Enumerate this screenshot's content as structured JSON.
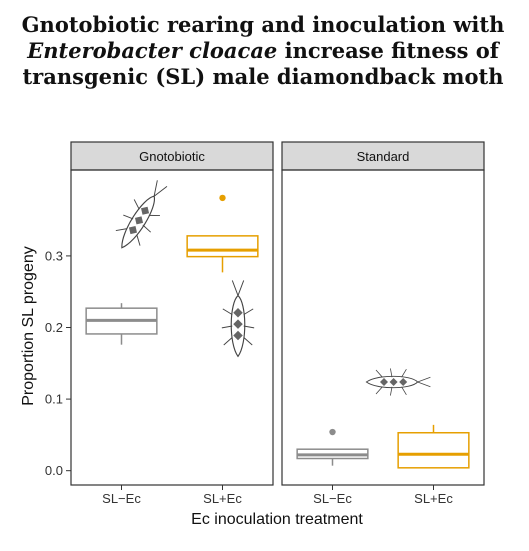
{
  "title": {
    "line1": "Gnotobiotic rearing and inoculation with",
    "line2_italic": "Enterobacter cloacae",
    "line2_rest": " increase fitness of",
    "line3": "transgenic (SL) male diamondback moth"
  },
  "colors": {
    "SL-Ec": "#8c8c8c",
    "SL+Ec": "#e69f00",
    "strip_fill": "#d9d9d9",
    "panel_border": "#333333"
  },
  "chart_data": {
    "type": "boxplot",
    "xlabel": "Ec inoculation treatment",
    "ylabel": "Proportion SL progeny",
    "ylim": [
      -0.02,
      0.42
    ],
    "y_ticks": [
      0.0,
      0.1,
      0.2,
      0.3
    ],
    "y_tick_labels": [
      "0.0",
      "0.1",
      "0.2",
      "0.3"
    ],
    "categories": [
      "SL−Ec",
      "SL+Ec"
    ],
    "grid": false,
    "legend": "none",
    "panels": [
      {
        "name": "Gnotobiotic",
        "boxes": [
          {
            "category": "SL−Ec",
            "min": 0.176,
            "q1": 0.191,
            "median": 0.21,
            "q3": 0.227,
            "max": 0.234,
            "outliers": []
          },
          {
            "category": "SL+Ec",
            "min": 0.277,
            "q1": 0.299,
            "median": 0.308,
            "q3": 0.328,
            "max": 0.328,
            "outliers": [
              0.381
            ]
          }
        ],
        "annotations": [
          "moth-illustration-wings-spread",
          "moth-illustration-resting"
        ]
      },
      {
        "name": "Standard",
        "boxes": [
          {
            "category": "SL−Ec",
            "min": 0.007,
            "q1": 0.017,
            "median": 0.022,
            "q3": 0.03,
            "max": 0.03,
            "outliers": [
              0.054
            ]
          },
          {
            "category": "SL+Ec",
            "min": 0.004,
            "q1": 0.004,
            "median": 0.023,
            "q3": 0.053,
            "max": 0.064,
            "outliers": []
          }
        ],
        "annotations": [
          "moth-illustration-side"
        ]
      }
    ]
  }
}
